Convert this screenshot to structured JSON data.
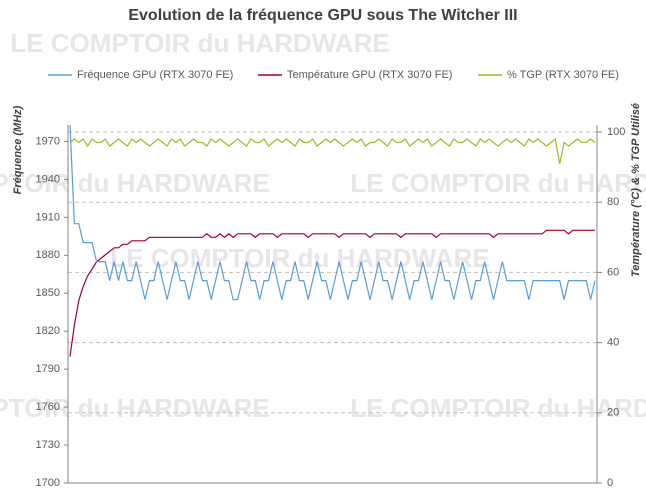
{
  "chart_data": {
    "type": "line",
    "title": "Evolution de la fréquence GPU sous The Witcher III",
    "watermark": "LE COMPTOIR du HARDWARE",
    "y_label": "Fréquence (MHz)",
    "y2_label": "Température (°C) & % TGP Utilisé",
    "ylim": [
      1700,
      1983
    ],
    "yticks": [
      1700,
      1730,
      1760,
      1790,
      1820,
      1850,
      1880,
      1910,
      1940,
      1970
    ],
    "y2lim": [
      0,
      102
    ],
    "y2ticks": [
      0,
      20,
      40,
      60,
      80,
      100
    ],
    "grid": true,
    "legend": "top",
    "series": [
      {
        "name": "Fréquence GPU (RTX 3070 FE)",
        "color": "#5b9bd5",
        "axis": "y",
        "values": [
          1983,
          1905,
          1905,
          1890,
          1890,
          1890,
          1875,
          1875,
          1875,
          1860,
          1875,
          1860,
          1875,
          1860,
          1860,
          1875,
          1860,
          1845,
          1860,
          1860,
          1875,
          1860,
          1845,
          1860,
          1875,
          1860,
          1860,
          1845,
          1860,
          1875,
          1860,
          1860,
          1845,
          1860,
          1875,
          1860,
          1860,
          1845,
          1845,
          1860,
          1875,
          1860,
          1860,
          1845,
          1860,
          1860,
          1875,
          1860,
          1845,
          1860,
          1860,
          1875,
          1860,
          1860,
          1845,
          1860,
          1875,
          1860,
          1860,
          1845,
          1860,
          1875,
          1860,
          1845,
          1860,
          1860,
          1875,
          1860,
          1845,
          1860,
          1875,
          1860,
          1860,
          1845,
          1860,
          1875,
          1860,
          1845,
          1860,
          1860,
          1875,
          1860,
          1845,
          1860,
          1875,
          1860,
          1860,
          1845,
          1860,
          1875,
          1860,
          1845,
          1860,
          1860,
          1875,
          1860,
          1845,
          1860,
          1875,
          1860,
          1860,
          1860,
          1860,
          1860,
          1845,
          1860,
          1860,
          1860,
          1860,
          1860,
          1860,
          1860,
          1845,
          1860,
          1860,
          1860,
          1860,
          1860,
          1845,
          1860
        ]
      },
      {
        "name": "Température GPU (RTX 3070 FE)",
        "color": "#a50021",
        "axis": "y2",
        "values": [
          36,
          45,
          52,
          56,
          59,
          61,
          63,
          64,
          65,
          66,
          67,
          67,
          68,
          68,
          69,
          69,
          69,
          69,
          70,
          70,
          70,
          70,
          70,
          70,
          70,
          70,
          70,
          70,
          70,
          70,
          70,
          71,
          70,
          70,
          71,
          70,
          71,
          70,
          71,
          71,
          71,
          71,
          70,
          71,
          71,
          71,
          71,
          70,
          71,
          71,
          71,
          71,
          71,
          71,
          70,
          71,
          71,
          71,
          71,
          71,
          71,
          70,
          71,
          71,
          71,
          71,
          71,
          71,
          70,
          71,
          71,
          71,
          71,
          71,
          71,
          70,
          71,
          71,
          71,
          71,
          71,
          71,
          71,
          70,
          71,
          71,
          71,
          71,
          71,
          71,
          71,
          71,
          71,
          71,
          71,
          71,
          70,
          71,
          71,
          71,
          71,
          71,
          71,
          71,
          71,
          71,
          71,
          71,
          72,
          72,
          72,
          72,
          72,
          71,
          72,
          72,
          72,
          72,
          72,
          72
        ]
      },
      {
        "name": "% TGP (RTX 3070 FE)",
        "color": "#9bbb29",
        "axis": "y2",
        "values": [
          97,
          98,
          97,
          98,
          96,
          98,
          97,
          97,
          98,
          96,
          97,
          98,
          97,
          96,
          98,
          97,
          98,
          97,
          96,
          97,
          98,
          97,
          96,
          98,
          97,
          98,
          96,
          97,
          98,
          97,
          97,
          96,
          98,
          97,
          98,
          97,
          96,
          97,
          98,
          97,
          96,
          98,
          97,
          97,
          98,
          96,
          97,
          98,
          97,
          98,
          97,
          96,
          98,
          97,
          97,
          98,
          96,
          97,
          98,
          97,
          98,
          97,
          96,
          97,
          98,
          97,
          98,
          96,
          97,
          97,
          98,
          97,
          96,
          98,
          97,
          97,
          98,
          96,
          97,
          98,
          97,
          98,
          96,
          97,
          98,
          97,
          96,
          98,
          97,
          97,
          98,
          97,
          96,
          98,
          97,
          98,
          97,
          96,
          97,
          98,
          97,
          98,
          97,
          96,
          98,
          97,
          98,
          97,
          96,
          97,
          98,
          91,
          97,
          96,
          97,
          98,
          97,
          97,
          98,
          97
        ]
      }
    ]
  }
}
